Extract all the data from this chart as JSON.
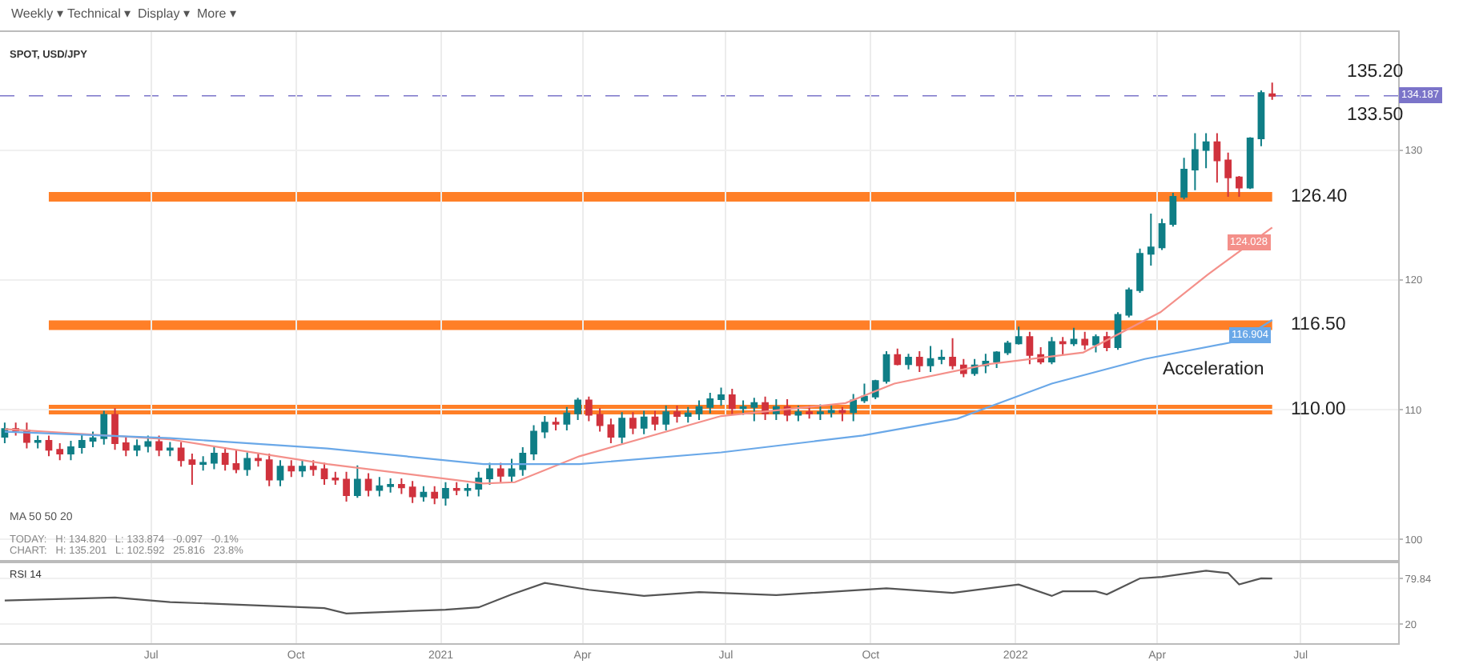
{
  "chart_data": [
    {
      "type": "candlestick",
      "title": "SPOT, USD/JPY",
      "x": [
        "2020-03-30",
        "2020-04-06",
        "2020-04-13",
        "2020-04-20",
        "2020-04-27",
        "2020-05-04",
        "2020-05-11",
        "2020-05-18",
        "2020-05-25",
        "2020-06-01",
        "2020-06-08",
        "2020-06-15",
        "2020-06-22",
        "2020-06-29",
        "2020-07-06",
        "2020-07-13",
        "2020-07-20",
        "2020-07-27",
        "2020-08-03",
        "2020-08-10",
        "2020-08-17",
        "2020-08-24",
        "2020-08-31",
        "2020-09-07",
        "2020-09-14",
        "2020-09-21",
        "2020-09-28",
        "2020-10-05",
        "2020-10-12",
        "2020-10-19",
        "2020-10-26",
        "2020-11-02",
        "2020-11-09",
        "2020-11-16",
        "2020-11-23",
        "2020-11-30",
        "2020-12-07",
        "2020-12-14",
        "2020-12-21",
        "2020-12-28",
        "2021-01-04",
        "2021-01-11",
        "2021-01-18",
        "2021-01-25",
        "2021-02-01",
        "2021-02-08",
        "2021-02-15",
        "2021-02-22",
        "2021-03-01",
        "2021-03-08",
        "2021-03-15",
        "2021-03-22",
        "2021-03-29",
        "2021-04-05",
        "2021-04-12",
        "2021-04-19",
        "2021-04-26",
        "2021-05-03",
        "2021-05-10",
        "2021-05-17",
        "2021-05-24",
        "2021-05-31",
        "2021-06-07",
        "2021-06-14",
        "2021-06-21",
        "2021-06-28",
        "2021-07-05",
        "2021-07-12",
        "2021-07-19",
        "2021-07-26",
        "2021-08-02",
        "2021-08-09",
        "2021-08-16",
        "2021-08-23",
        "2021-08-30",
        "2021-09-06",
        "2021-09-13",
        "2021-09-20",
        "2021-09-27",
        "2021-10-04",
        "2021-10-11",
        "2021-10-18",
        "2021-10-25",
        "2021-11-01",
        "2021-11-08",
        "2021-11-15",
        "2021-11-22",
        "2021-11-29",
        "2021-12-06",
        "2021-12-13",
        "2021-12-20",
        "2021-12-27",
        "2022-01-03",
        "2022-01-10",
        "2022-01-17",
        "2022-01-24",
        "2022-01-31",
        "2022-02-07",
        "2022-02-14",
        "2022-02-21",
        "2022-02-28",
        "2022-03-07",
        "2022-03-14",
        "2022-03-21",
        "2022-03-28",
        "2022-04-04",
        "2022-04-11",
        "2022-04-18",
        "2022-04-25",
        "2022-05-02",
        "2022-05-09",
        "2022-05-16",
        "2022-05-23",
        "2022-05-30",
        "2022-06-06",
        "2022-06-13"
      ],
      "ohlc": [
        [
          107.9,
          109.0,
          107.4,
          108.5
        ],
        [
          108.5,
          109.0,
          108.0,
          108.4
        ],
        [
          108.4,
          109.0,
          107.0,
          107.5
        ],
        [
          107.5,
          108.0,
          107.0,
          107.6
        ],
        [
          107.6,
          108.0,
          106.4,
          106.9
        ],
        [
          106.9,
          107.4,
          106.1,
          106.6
        ],
        [
          106.6,
          107.6,
          106.1,
          107.1
        ],
        [
          107.1,
          108.1,
          106.6,
          107.6
        ],
        [
          107.6,
          108.3,
          107.1,
          107.8
        ],
        [
          107.8,
          109.9,
          107.3,
          109.6
        ],
        [
          109.6,
          110.1,
          106.9,
          107.4
        ],
        [
          107.4,
          107.9,
          106.4,
          106.9
        ],
        [
          106.9,
          107.7,
          106.4,
          107.2
        ],
        [
          107.2,
          108.0,
          106.7,
          107.5
        ],
        [
          107.5,
          108.0,
          106.4,
          106.9
        ],
        [
          106.9,
          107.5,
          106.4,
          107.0
        ],
        [
          107.0,
          107.5,
          105.6,
          106.1
        ],
        [
          106.1,
          106.6,
          104.2,
          105.8
        ],
        [
          105.8,
          106.4,
          105.3,
          105.9
        ],
        [
          105.9,
          107.1,
          105.4,
          106.6
        ],
        [
          106.6,
          107.1,
          105.3,
          105.8
        ],
        [
          105.8,
          106.9,
          105.1,
          105.4
        ],
        [
          105.4,
          106.7,
          104.9,
          106.2
        ],
        [
          106.2,
          106.6,
          105.6,
          106.1
        ],
        [
          106.1,
          106.6,
          104.1,
          104.6
        ],
        [
          104.6,
          106.1,
          104.1,
          105.6
        ],
        [
          105.6,
          106.1,
          104.8,
          105.3
        ],
        [
          105.3,
          106.1,
          104.8,
          105.6
        ],
        [
          105.6,
          106.1,
          104.9,
          105.4
        ],
        [
          105.4,
          105.9,
          104.2,
          104.7
        ],
        [
          104.7,
          105.2,
          104.2,
          104.6
        ],
        [
          104.6,
          105.2,
          102.9,
          103.4
        ],
        [
          103.4,
          105.7,
          103.2,
          104.6
        ],
        [
          104.6,
          105.1,
          103.3,
          103.8
        ],
        [
          103.8,
          104.8,
          103.3,
          104.1
        ],
        [
          104.1,
          104.7,
          103.6,
          104.2
        ],
        [
          104.2,
          104.7,
          103.5,
          104.0
        ],
        [
          104.0,
          104.5,
          102.8,
          103.3
        ],
        [
          103.3,
          104.1,
          102.9,
          103.6
        ],
        [
          103.6,
          104.1,
          102.7,
          103.2
        ],
        [
          103.2,
          104.4,
          102.592,
          103.9
        ],
        [
          103.9,
          104.4,
          103.4,
          103.8
        ],
        [
          103.8,
          104.3,
          103.3,
          103.9
        ],
        [
          103.9,
          105.2,
          103.3,
          104.7
        ],
        [
          104.7,
          105.9,
          104.2,
          105.4
        ],
        [
          105.4,
          105.9,
          104.4,
          104.9
        ],
        [
          104.9,
          106.2,
          104.4,
          105.4
        ],
        [
          105.4,
          107.1,
          104.9,
          106.6
        ],
        [
          106.6,
          108.8,
          106.1,
          108.3
        ],
        [
          108.3,
          109.5,
          107.8,
          109.0
        ],
        [
          109.0,
          109.4,
          108.4,
          108.9
        ],
        [
          108.9,
          110.2,
          108.4,
          109.7
        ],
        [
          109.7,
          110.9,
          109.2,
          110.7
        ],
        [
          110.7,
          111.0,
          109.1,
          109.6
        ],
        [
          109.6,
          110.1,
          108.3,
          108.8
        ],
        [
          108.8,
          109.3,
          107.4,
          107.9
        ],
        [
          107.9,
          109.8,
          107.4,
          109.3
        ],
        [
          109.3,
          109.8,
          108.1,
          108.6
        ],
        [
          108.6,
          109.9,
          108.1,
          109.4
        ],
        [
          109.4,
          109.9,
          108.4,
          108.9
        ],
        [
          108.9,
          110.3,
          108.4,
          109.8
        ],
        [
          109.8,
          110.3,
          109.0,
          109.5
        ],
        [
          109.5,
          110.2,
          109.0,
          109.7
        ],
        [
          109.7,
          110.7,
          109.2,
          110.2
        ],
        [
          110.2,
          111.3,
          109.7,
          110.8
        ],
        [
          110.8,
          111.7,
          110.3,
          111.1
        ],
        [
          111.1,
          111.6,
          109.6,
          110.1
        ],
        [
          110.1,
          110.7,
          109.6,
          110.2
        ],
        [
          110.2,
          110.9,
          109.1,
          110.5
        ],
        [
          110.5,
          111.0,
          109.2,
          109.7
        ],
        [
          109.7,
          110.8,
          109.2,
          110.2
        ],
        [
          110.2,
          110.8,
          109.1,
          109.6
        ],
        [
          109.6,
          110.3,
          109.1,
          109.8
        ],
        [
          109.8,
          110.3,
          109.3,
          109.7
        ],
        [
          109.7,
          110.4,
          109.2,
          109.8
        ],
        [
          109.8,
          110.4,
          109.4,
          109.9
        ],
        [
          109.9,
          110.2,
          109.1,
          109.8
        ],
        [
          109.8,
          111.2,
          109.1,
          110.7
        ],
        [
          110.7,
          112.0,
          110.5,
          111.0
        ],
        [
          111.0,
          112.3,
          110.8,
          112.2
        ],
        [
          112.2,
          114.5,
          112.0,
          114.2
        ],
        [
          114.2,
          114.7,
          113.4,
          113.5
        ],
        [
          113.5,
          114.3,
          113.1,
          114.0
        ],
        [
          114.0,
          114.5,
          112.9,
          113.4
        ],
        [
          113.4,
          114.9,
          112.9,
          113.9
        ],
        [
          113.9,
          114.6,
          113.5,
          114.0
        ],
        [
          114.0,
          115.5,
          113.1,
          113.4
        ],
        [
          113.4,
          113.9,
          112.5,
          112.8
        ],
        [
          112.8,
          113.9,
          112.6,
          113.4
        ],
        [
          113.4,
          114.3,
          112.8,
          113.7
        ],
        [
          113.7,
          114.5,
          113.2,
          114.4
        ],
        [
          114.4,
          115.3,
          114.2,
          115.1
        ],
        [
          115.1,
          116.4,
          115.0,
          115.6
        ],
        [
          115.6,
          116.0,
          113.5,
          114.2
        ],
        [
          114.2,
          114.8,
          113.5,
          113.7
        ],
        [
          113.7,
          115.6,
          113.5,
          115.2
        ],
        [
          115.2,
          115.6,
          114.2,
          115.1
        ],
        [
          115.1,
          116.3,
          114.9,
          115.4
        ],
        [
          115.4,
          116.0,
          114.6,
          115.0
        ],
        [
          115.0,
          115.8,
          114.4,
          115.6
        ],
        [
          115.6,
          116.0,
          114.5,
          114.8
        ],
        [
          114.8,
          117.5,
          114.6,
          117.3
        ],
        [
          117.3,
          119.4,
          117.1,
          119.2
        ],
        [
          119.2,
          122.4,
          119.0,
          122.0
        ],
        [
          122.0,
          125.1,
          121.1,
          122.5
        ],
        [
          122.5,
          124.7,
          122.3,
          124.3
        ],
        [
          124.3,
          126.7,
          124.1,
          126.4
        ],
        [
          126.4,
          129.4,
          126.2,
          128.5
        ],
        [
          128.5,
          131.3,
          126.9,
          130.0
        ],
        [
          130.0,
          131.3,
          128.6,
          130.6
        ],
        [
          130.6,
          131.3,
          127.5,
          129.2
        ],
        [
          129.2,
          129.8,
          126.4,
          127.9
        ],
        [
          127.9,
          128.0,
          126.4,
          127.1
        ],
        [
          127.1,
          131.0,
          127.0,
          130.9
        ],
        [
          130.9,
          134.6,
          130.3,
          134.4
        ],
        [
          134.3,
          135.201,
          133.874,
          134.187
        ]
      ],
      "series": [
        {
          "type": "line",
          "color": "#f4908a",
          "x": [
            "2020-03-30",
            "2020-07-13",
            "2020-10-21",
            "2021-01-28",
            "2021-02-17",
            "2021-03-30",
            "2021-06-28",
            "2021-09-15",
            "2021-10-16",
            "2021-12-15",
            "2022-02-13",
            "2022-04-03",
            "2022-05-03",
            "2022-06-13"
          ],
          "values": [
            108.5,
            107.7,
            105.8,
            104.3,
            104.4,
            106.4,
            109.5,
            110.5,
            112.0,
            113.5,
            114.4,
            117.5,
            120.4,
            124.028
          ],
          "value_labels": [
            null,
            null,
            null,
            null,
            null,
            null,
            null,
            null,
            null,
            null,
            null,
            null,
            null,
            "124.028"
          ]
        },
        {
          "type": "line",
          "color": "#6aa8e8",
          "x": [
            "2020-03-30",
            "2020-07-13",
            "2020-10-21",
            "2021-01-28",
            "2021-03-30",
            "2021-06-28",
            "2021-09-26",
            "2021-11-25",
            "2022-01-24",
            "2022-03-24",
            "2022-05-23",
            "2022-06-13"
          ],
          "values": [
            108.3,
            107.8,
            107.0,
            105.8,
            105.8,
            106.7,
            108.0,
            109.3,
            112.0,
            113.9,
            115.3,
            116.904
          ],
          "value_labels": [
            null,
            null,
            null,
            null,
            null,
            null,
            null,
            null,
            null,
            null,
            null,
            "116.904"
          ]
        }
      ],
      "xlim": [
        "2020-03-27",
        "2022-09-01"
      ],
      "xticks": [
        {
          "value": "2020-07-01",
          "label": null
        },
        {
          "value": "2020-10-01",
          "label": null
        },
        {
          "value": "2021-01-01",
          "label": null
        },
        {
          "value": "2021-04-01",
          "label": null
        },
        {
          "value": "2021-07-01",
          "label": null
        },
        {
          "value": "2021-10-01",
          "label": null
        },
        {
          "value": "2022-01-01",
          "label": null
        },
        {
          "value": "2022-04-01",
          "label": null
        },
        {
          "value": "2022-07-01",
          "label": null
        }
      ],
      "ylim": [
        98.4,
        139.1
      ],
      "yticks": [
        100,
        110,
        120,
        130
      ],
      "tick_labels": "y",
      "grid": true,
      "ref_lines": [
        {
          "axis": "y",
          "value": 110.0,
          "label": "110.00",
          "color": "#ff7f27"
        },
        {
          "axis": "y",
          "value": 116.5,
          "label": "116.50",
          "color": "#ff7f27"
        },
        {
          "axis": "y",
          "value": 126.4,
          "label": "126.40",
          "color": "#ff7f27"
        },
        {
          "axis": "y",
          "value": 134.187,
          "label": "134.187",
          "color": "#7b74c9",
          "line_style": "dashed"
        }
      ],
      "annotations": [
        "Weekly ▾",
        "Technical ▾",
        "Display ▾",
        "More ▾",
        "MA 50 50 20",
        "TODAY:   H: 134.820   L: 133.874   -0.097   -0.1%",
        "CHART:   H: 135.201   L: 102.592   25.816   23.8%",
        "135.20",
        "133.50",
        "Acceleration"
      ]
    },
    {
      "type": "line",
      "title": "RSI 14",
      "color": "#555555",
      "x": [
        "2020-03-30",
        "2020-06-08",
        "2020-07-13",
        "2020-10-19",
        "2020-11-02",
        "2021-01-04",
        "2021-01-25",
        "2021-02-15",
        "2021-03-08",
        "2021-04-05",
        "2021-05-10",
        "2021-06-14",
        "2021-08-02",
        "2021-10-11",
        "2021-11-22",
        "2022-01-03",
        "2022-01-24",
        "2022-01-31",
        "2022-02-21",
        "2022-02-28",
        "2022-03-21",
        "2022-04-04",
        "2022-05-02",
        "2022-05-16",
        "2022-05-23",
        "2022-06-06",
        "2022-06-13"
      ],
      "values": [
        51,
        55,
        49,
        41,
        34,
        39,
        42,
        59,
        74,
        65,
        57,
        62,
        58,
        67,
        61,
        72,
        57,
        63,
        63,
        59,
        80,
        82,
        90,
        87,
        72,
        80,
        79.84
      ],
      "xlim": [
        "2020-03-27",
        "2022-09-01"
      ],
      "xticks": [
        {
          "value": "2020-07-01",
          "label": "Jul"
        },
        {
          "value": "2020-10-01",
          "label": "Oct"
        },
        {
          "value": "2021-01-01",
          "label": "2021"
        },
        {
          "value": "2021-04-01",
          "label": "Apr"
        },
        {
          "value": "2021-07-01",
          "label": "Jul"
        },
        {
          "value": "2021-10-01",
          "label": "Oct"
        },
        {
          "value": "2022-01-01",
          "label": "2022"
        },
        {
          "value": "2022-04-01",
          "label": "Apr"
        },
        {
          "value": "2022-07-01",
          "label": "Jul"
        }
      ],
      "ylim": [
        -5,
        100
      ],
      "yticks": [
        20,
        {
          "value": 79.84,
          "label": "79.84"
        }
      ],
      "grid": true
    }
  ]
}
